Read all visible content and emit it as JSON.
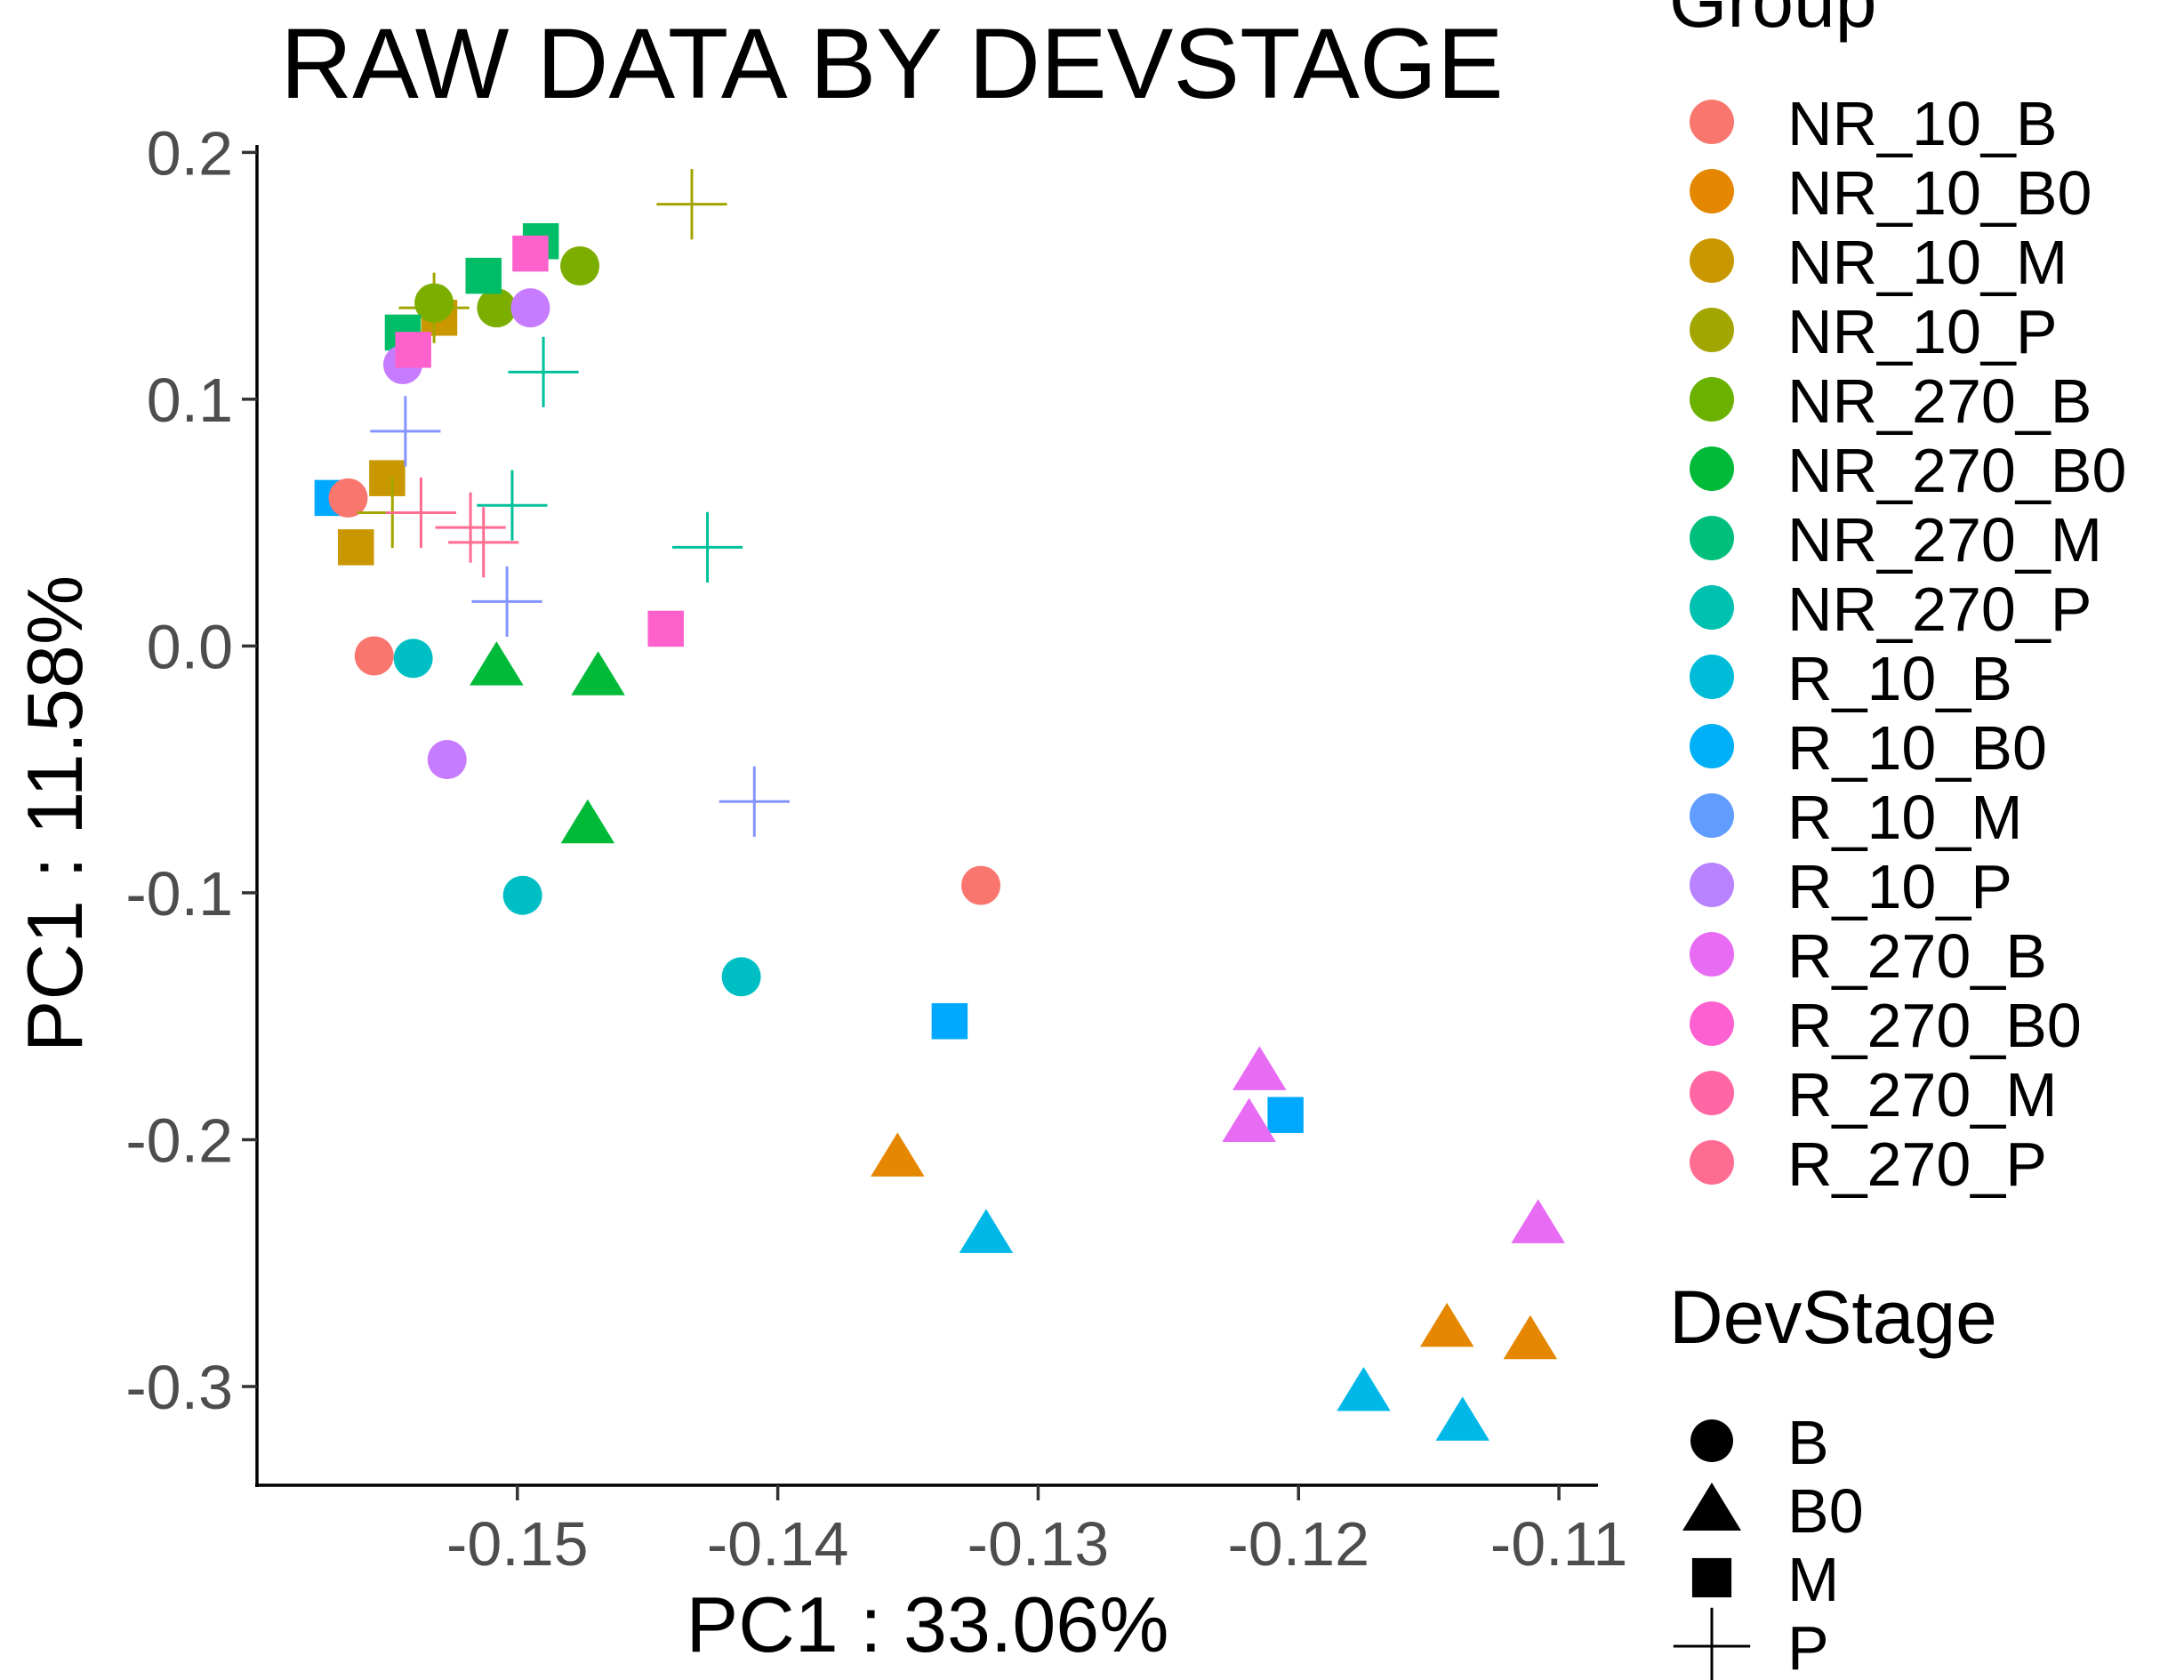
{
  "chart_data": {
    "type": "scatter",
    "title": "RAW DATA BY DEVSTAGE",
    "xlabel": "PC1 : 33.06%",
    "ylabel": "PC1 : 11.58%",
    "xlim": [
      -0.16,
      -0.1085
    ],
    "ylim": [
      -0.34,
      0.203
    ],
    "x_ticks": [
      -0.15,
      -0.14,
      -0.13,
      -0.12,
      -0.11
    ],
    "x_tick_labels": [
      "-0.15",
      "-0.14",
      "-0.13",
      "-0.12",
      "-0.11"
    ],
    "y_ticks": [
      0.2,
      0.1,
      0.0,
      -0.1,
      -0.2,
      -0.3
    ],
    "y_tick_labels": [
      "0.2",
      "0.1",
      "0.0",
      "-0.1",
      "-0.2",
      "-0.3"
    ],
    "grid": false,
    "legend_position": "right",
    "group_legend_title": "Group",
    "shape_legend_title": "DevStage",
    "groups": [
      {
        "name": "NR_10_B",
        "color": "#F8766D"
      },
      {
        "name": "NR_10_B0",
        "color": "#E58700"
      },
      {
        "name": "NR_10_M",
        "color": "#C99800"
      },
      {
        "name": "NR_10_P",
        "color": "#A3A500"
      },
      {
        "name": "NR_270_B",
        "color": "#6BB100"
      },
      {
        "name": "NR_270_B0",
        "color": "#00BA38"
      },
      {
        "name": "NR_270_M",
        "color": "#00BF7D"
      },
      {
        "name": "NR_270_P",
        "color": "#00C0AF"
      },
      {
        "name": "R_10_B",
        "color": "#00BCD8"
      },
      {
        "name": "R_10_B0",
        "color": "#00B0F6"
      },
      {
        "name": "R_10_M",
        "color": "#619CFF"
      },
      {
        "name": "R_10_P",
        "color": "#B983FF"
      },
      {
        "name": "R_270_B",
        "color": "#E76BF3"
      },
      {
        "name": "R_270_B0",
        "color": "#FD61D1"
      },
      {
        "name": "R_270_M",
        "color": "#FF67A4"
      },
      {
        "name": "R_270_P",
        "color": "#FF6C91"
      }
    ],
    "devstages": [
      {
        "name": "B",
        "shape": "circle"
      },
      {
        "name": "B0",
        "shape": "triangle"
      },
      {
        "name": "M",
        "shape": "square"
      },
      {
        "name": "P",
        "shape": "plus"
      }
    ],
    "points": [
      {
        "x": -0.1571,
        "y": 0.06,
        "shape": "square",
        "color": "#00A9FF"
      },
      {
        "x": -0.1565,
        "y": 0.06,
        "shape": "circle",
        "color": "#F8766D"
      },
      {
        "x": -0.1555,
        "y": -0.004,
        "shape": "circle",
        "color": "#F8766D"
      },
      {
        "x": -0.1322,
        "y": -0.097,
        "shape": "circle",
        "color": "#F8766D"
      },
      {
        "x": -0.1354,
        "y": -0.207,
        "shape": "triangle",
        "color": "#E58700"
      },
      {
        "x": -0.1143,
        "y": -0.276,
        "shape": "triangle",
        "color": "#E58700"
      },
      {
        "x": -0.1111,
        "y": -0.281,
        "shape": "triangle",
        "color": "#E58700"
      },
      {
        "x": -0.1562,
        "y": 0.04,
        "shape": "square",
        "color": "#C99800"
      },
      {
        "x": -0.155,
        "y": 0.068,
        "shape": "square",
        "color": "#C99800"
      },
      {
        "x": -0.153,
        "y": 0.133,
        "shape": "square",
        "color": "#C99800"
      },
      {
        "x": -0.1532,
        "y": 0.137,
        "shape": "plus",
        "color": "#A3A500"
      },
      {
        "x": -0.1548,
        "y": 0.054,
        "shape": "plus",
        "color": "#A3A500"
      },
      {
        "x": -0.1433,
        "y": 0.179,
        "shape": "plus",
        "color": "#A3A500"
      },
      {
        "x": -0.1532,
        "y": 0.139,
        "shape": "circle",
        "color": "#7CAE00"
      },
      {
        "x": -0.1508,
        "y": 0.137,
        "shape": "circle",
        "color": "#7CAE00"
      },
      {
        "x": -0.1476,
        "y": 0.154,
        "shape": "circle",
        "color": "#7CAE00"
      },
      {
        "x": -0.1508,
        "y": -0.008,
        "shape": "triangle",
        "color": "#00BA38"
      },
      {
        "x": -0.1469,
        "y": -0.012,
        "shape": "triangle",
        "color": "#00BA38"
      },
      {
        "x": -0.1473,
        "y": -0.072,
        "shape": "triangle",
        "color": "#00BA38"
      },
      {
        "x": -0.1544,
        "y": 0.127,
        "shape": "square",
        "color": "#00BE67"
      },
      {
        "x": -0.1513,
        "y": 0.15,
        "shape": "square",
        "color": "#00BE67"
      },
      {
        "x": -0.1491,
        "y": 0.164,
        "shape": "square",
        "color": "#00BE67"
      },
      {
        "x": -0.149,
        "y": 0.111,
        "shape": "plus",
        "color": "#00C19A"
      },
      {
        "x": -0.1502,
        "y": 0.057,
        "shape": "plus",
        "color": "#00C19A"
      },
      {
        "x": -0.1427,
        "y": 0.04,
        "shape": "plus",
        "color": "#00C19A"
      },
      {
        "x": -0.154,
        "y": -0.005,
        "shape": "circle",
        "color": "#00BFC4"
      },
      {
        "x": -0.1498,
        "y": -0.101,
        "shape": "circle",
        "color": "#00BFC4"
      },
      {
        "x": -0.1414,
        "y": -0.134,
        "shape": "circle",
        "color": "#00BFC4"
      },
      {
        "x": -0.132,
        "y": -0.238,
        "shape": "triangle",
        "color": "#00B8E7"
      },
      {
        "x": -0.1175,
        "y": -0.302,
        "shape": "triangle",
        "color": "#00B8E7"
      },
      {
        "x": -0.1137,
        "y": -0.314,
        "shape": "triangle",
        "color": "#00B8E7"
      },
      {
        "x": -0.1334,
        "y": -0.152,
        "shape": "square",
        "color": "#00A9FF"
      },
      {
        "x": -0.1205,
        "y": -0.19,
        "shape": "square",
        "color": "#00A9FF"
      },
      {
        "x": -0.1543,
        "y": 0.087,
        "shape": "plus",
        "color": "#8494FF"
      },
      {
        "x": -0.1504,
        "y": 0.018,
        "shape": "plus",
        "color": "#8494FF"
      },
      {
        "x": -0.1409,
        "y": -0.063,
        "shape": "plus",
        "color": "#8494FF"
      },
      {
        "x": -0.1544,
        "y": 0.114,
        "shape": "circle",
        "color": "#C77CFF"
      },
      {
        "x": -0.1495,
        "y": 0.137,
        "shape": "circle",
        "color": "#C77CFF"
      },
      {
        "x": -0.1527,
        "y": -0.046,
        "shape": "circle",
        "color": "#C77CFF"
      },
      {
        "x": -0.1215,
        "y": -0.172,
        "shape": "triangle",
        "color": "#E76BF3"
      },
      {
        "x": -0.1219,
        "y": -0.193,
        "shape": "triangle",
        "color": "#E76BF3"
      },
      {
        "x": -0.1108,
        "y": -0.234,
        "shape": "triangle",
        "color": "#E76BF3"
      },
      {
        "x": -0.154,
        "y": 0.12,
        "shape": "square",
        "color": "#FF61CC"
      },
      {
        "x": -0.1495,
        "y": 0.159,
        "shape": "square",
        "color": "#FF61CC"
      },
      {
        "x": -0.1443,
        "y": 0.007,
        "shape": "square",
        "color": "#FF61CC"
      },
      {
        "x": -0.1537,
        "y": 0.054,
        "shape": "plus",
        "color": "#FF6C91"
      },
      {
        "x": -0.1518,
        "y": 0.048,
        "shape": "plus",
        "color": "#FF6C91"
      },
      {
        "x": -0.1513,
        "y": 0.042,
        "shape": "plus",
        "color": "#FF6C91"
      }
    ]
  }
}
